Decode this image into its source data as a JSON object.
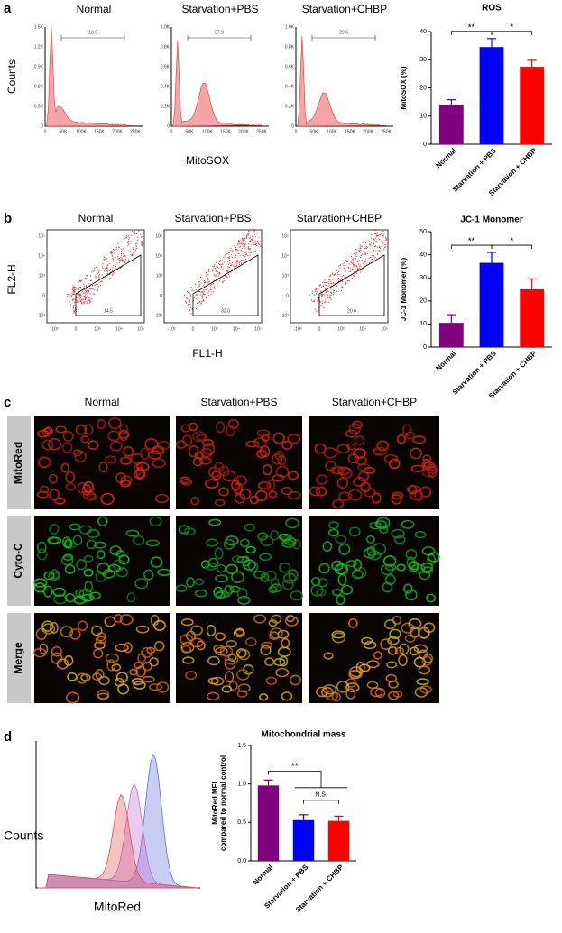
{
  "panels": {
    "a": {
      "label": "a",
      "titles": [
        "Normal",
        "Starvation+PBS",
        "Starvation+CHBP"
      ],
      "gates": [
        "13.9",
        "37.9",
        "29.6"
      ],
      "xticks": [
        "0",
        "50K",
        "100K",
        "150K",
        "200K",
        "250K"
      ],
      "yticks": [
        [
          "0",
          "0.3K",
          "0.6K",
          "0.9K",
          "1.2K",
          "1.5K"
        ],
        [
          "0",
          "0.2K",
          "0.4K",
          "0.6K",
          "0.8K",
          "1.0K"
        ],
        [
          "0",
          "0.2K",
          "0.4K",
          "0.6K",
          "0.8K",
          "1.0K"
        ]
      ],
      "xlabel": "MitoSOX",
      "ylabel": "Counts"
    },
    "b": {
      "label": "b",
      "titles": [
        "Normal",
        "Starvation+PBS",
        "Starvation+CHBP"
      ],
      "gates": [
        "14.5",
        "32.0",
        "20.6"
      ],
      "xticks": [
        "-10³",
        "0",
        "10³",
        "10⁴",
        "10⁵"
      ],
      "yticks": [
        "-10³",
        "0",
        "10³",
        "10⁴",
        "10⁵"
      ],
      "xlabel": "FL1-H",
      "ylabel": "FL2-H"
    },
    "c": {
      "label": "c",
      "titles": [
        "Normal",
        "Starvation+PBS",
        "Starvation+CHBP"
      ],
      "rows": [
        "MitoRed",
        "Cyto-C",
        "Merge"
      ]
    },
    "d": {
      "label": "d",
      "xlabel": "MitoRed",
      "ylabel": "Counts"
    }
  },
  "chart_data": [
    {
      "type": "bar",
      "title": "ROS",
      "ylabel": "MitoSOX (%)",
      "categories": [
        "Normal",
        "Starvation + PBS",
        "Starvation + CHBP"
      ],
      "values": [
        14,
        34.5,
        27.5
      ],
      "errors": [
        1.8,
        3,
        2.3
      ],
      "colors": [
        "#800080",
        "#0000ff",
        "#ff0000"
      ],
      "ylim": [
        0,
        40
      ],
      "yticks": [
        0,
        10,
        20,
        30,
        40
      ],
      "annotations": [
        "**",
        "*"
      ]
    },
    {
      "type": "bar",
      "title": "JC-1 Monomer",
      "ylabel": "JC-1 Monomer (%)",
      "categories": [
        "Normal",
        "Starvation + PBS",
        "Starvation + CHBP"
      ],
      "values": [
        10.5,
        36.5,
        25
      ],
      "errors": [
        3.5,
        4.5,
        4.5
      ],
      "colors": [
        "#800080",
        "#0000ff",
        "#ff0000"
      ],
      "ylim": [
        0,
        50
      ],
      "yticks": [
        0,
        10,
        20,
        30,
        40,
        50
      ],
      "annotations": [
        "**",
        "*"
      ]
    },
    {
      "type": "bar",
      "title": "Mitochondrial mass",
      "ylabel": [
        "MitoRed MFI",
        "compared to normal control"
      ],
      "categories": [
        "Normal",
        "Starvation + PBS",
        "Starvation + CHBP"
      ],
      "values": [
        0.98,
        0.53,
        0.52
      ],
      "errors": [
        0.07,
        0.07,
        0.06
      ],
      "colors": [
        "#800080",
        "#0000ff",
        "#ff0000"
      ],
      "ylim": [
        0,
        1.5
      ],
      "yticks": [
        {
          "value": 0,
          "label": "0.0"
        },
        {
          "value": 0.5,
          "label": "0.5"
        },
        {
          "value": 1,
          "label": "1.0"
        },
        {
          "value": 1.5,
          "label": "1.5"
        }
      ],
      "annotations": [
        "**",
        "N.S."
      ]
    }
  ]
}
